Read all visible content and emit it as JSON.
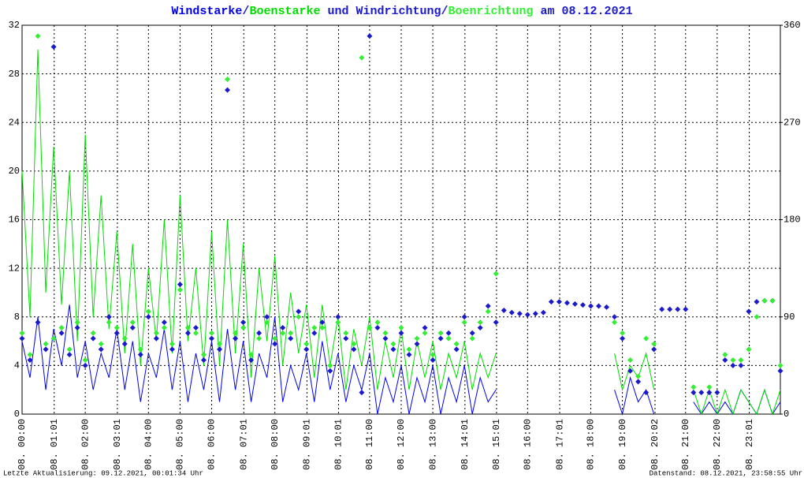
{
  "chart_data": {
    "type": "line",
    "title_joiners": [
      "/",
      " und ",
      "/",
      " am 08.12.2021"
    ],
    "footer_left": "Letzte Aktualisierung: 09.12.2021, 00:01:34 Uhr",
    "footer_right": "Datenstand: 08.12.2021, 23:58:55 Uhr",
    "xlim": [
      0,
      24
    ],
    "xticks": [
      {
        "value": 0,
        "label": "08. 00:00"
      },
      {
        "value": 1.0167,
        "label": "08. 01:01"
      },
      {
        "value": 2,
        "label": "08. 02:00"
      },
      {
        "value": 3.0167,
        "label": "08. 03:01"
      },
      {
        "value": 4,
        "label": "08. 04:00"
      },
      {
        "value": 5,
        "label": "08. 05:00"
      },
      {
        "value": 6,
        "label": "08. 06:00"
      },
      {
        "value": 7.0167,
        "label": "08. 07:01"
      },
      {
        "value": 8,
        "label": "08. 08:00"
      },
      {
        "value": 9.0167,
        "label": "08. 09:01"
      },
      {
        "value": 10.0167,
        "label": "08. 10:01"
      },
      {
        "value": 11,
        "label": "08. 11:00"
      },
      {
        "value": 12,
        "label": "08. 12:00"
      },
      {
        "value": 13,
        "label": "08. 13:00"
      },
      {
        "value": 14.0167,
        "label": "08. 14:01"
      },
      {
        "value": 15.0167,
        "label": "08. 15:01"
      },
      {
        "value": 16,
        "label": "08. 16:00"
      },
      {
        "value": 17.0167,
        "label": "08. 17:01"
      },
      {
        "value": 18,
        "label": "08. 18:00"
      },
      {
        "value": 19,
        "label": "08. 19:00"
      },
      {
        "value": 20.0333,
        "label": "08. 20:02"
      },
      {
        "value": 21,
        "label": "08. 21:00"
      },
      {
        "value": 22,
        "label": "08. 22:00"
      },
      {
        "value": 23.0167,
        "label": "08. 23:01"
      }
    ],
    "ylim": [
      0,
      32
    ],
    "yticks": [
      0,
      4,
      8,
      12,
      16,
      20,
      24,
      28,
      32
    ],
    "y2lim": [
      0,
      360
    ],
    "y2ticks": [
      0,
      90,
      180,
      270,
      360
    ],
    "grid": true,
    "x": [
      0,
      0.25,
      0.5,
      0.75,
      1,
      1.25,
      1.5,
      1.75,
      2,
      2.25,
      2.5,
      2.75,
      3,
      3.25,
      3.5,
      3.75,
      4,
      4.25,
      4.5,
      4.75,
      5,
      5.25,
      5.5,
      5.75,
      6,
      6.25,
      6.5,
      6.75,
      7,
      7.25,
      7.5,
      7.75,
      8,
      8.25,
      8.5,
      8.75,
      9,
      9.25,
      9.5,
      9.75,
      10,
      10.25,
      10.5,
      10.75,
      11,
      11.25,
      11.5,
      11.75,
      12,
      12.25,
      12.5,
      12.75,
      13,
      13.25,
      13.5,
      13.75,
      14,
      14.25,
      14.5,
      14.75,
      15,
      15.25,
      15.5,
      15.75,
      16,
      16.25,
      16.5,
      16.75,
      17,
      17.25,
      17.5,
      17.75,
      18,
      18.25,
      18.5,
      18.75,
      19,
      19.25,
      19.5,
      19.75,
      20,
      20.25,
      20.5,
      20.75,
      21,
      21.25,
      21.5,
      21.75,
      22,
      22.25,
      22.5,
      22.75,
      23,
      23.25,
      23.5,
      23.75,
      24
    ],
    "series": [
      {
        "name": "Windstarke",
        "color": "#0000ee",
        "mark": "line",
        "values": [
          6,
          3,
          8,
          2,
          7,
          4,
          9,
          3,
          6,
          2,
          5,
          3,
          7,
          2,
          6,
          1,
          5,
          3,
          7,
          2,
          6,
          1,
          5,
          2,
          6,
          1,
          7,
          2,
          6,
          1,
          5,
          3,
          8,
          1,
          4,
          2,
          5,
          1,
          6,
          2,
          5,
          1,
          4,
          2,
          5,
          0,
          3,
          1,
          4,
          0,
          3,
          1,
          4,
          0,
          3,
          1,
          4,
          0,
          3,
          1,
          2,
          null,
          null,
          null,
          null,
          null,
          null,
          null,
          null,
          null,
          null,
          null,
          null,
          null,
          null,
          2,
          0,
          3,
          1,
          2,
          0,
          null,
          null,
          null,
          null,
          1,
          0,
          1,
          0,
          1,
          0,
          2,
          1,
          0,
          2,
          0,
          1
        ]
      },
      {
        "name": "Boenstarke",
        "color": "#00dd00",
        "mark": "line",
        "values": [
          20,
          8,
          30,
          10,
          22,
          9,
          20,
          6,
          23,
          8,
          18,
          7,
          15,
          5,
          14,
          4,
          12,
          6,
          16,
          5,
          18,
          6,
          12,
          4,
          15,
          4,
          16,
          5,
          14,
          3,
          12,
          6,
          13,
          4,
          10,
          5,
          9,
          3,
          9,
          4,
          8,
          2,
          7,
          4,
          8,
          2,
          6,
          3,
          7,
          2,
          6,
          3,
          6,
          2,
          5,
          3,
          6,
          2,
          5,
          3,
          5,
          null,
          null,
          null,
          null,
          null,
          null,
          null,
          null,
          null,
          null,
          null,
          null,
          null,
          null,
          5,
          2,
          4,
          3,
          5,
          2,
          null,
          null,
          null,
          null,
          2,
          0,
          2,
          0,
          2,
          0,
          2,
          1,
          0,
          2,
          0,
          2
        ]
      },
      {
        "name": "Windrichtung",
        "color": "#1a1acc",
        "mark": "diamond",
        "axis": "y2",
        "values": [
          70,
          50,
          85,
          60,
          340,
          75,
          55,
          80,
          45,
          70,
          60,
          90,
          75,
          65,
          80,
          55,
          90,
          70,
          85,
          60,
          120,
          75,
          80,
          50,
          70,
          60,
          300,
          70,
          85,
          50,
          75,
          90,
          65,
          80,
          70,
          95,
          60,
          75,
          85,
          40,
          90,
          70,
          60,
          20,
          350,
          80,
          70,
          60,
          75,
          55,
          65,
          80,
          50,
          70,
          75,
          60,
          90,
          75,
          80,
          100,
          85,
          96,
          94,
          93,
          92,
          93,
          94,
          104,
          104,
          103,
          102,
          101,
          100,
          100,
          99,
          90,
          70,
          40,
          30,
          20,
          60,
          97,
          97,
          97,
          97,
          20,
          20,
          20,
          20,
          50,
          45,
          45,
          95,
          104,
          105,
          105,
          40
        ]
      },
      {
        "name": "Boenrichtung",
        "color": "#33ee33",
        "mark": "diamond",
        "axis": "y2",
        "values": [
          75,
          55,
          350,
          65,
          70,
          80,
          60,
          85,
          50,
          75,
          65,
          85,
          80,
          70,
          85,
          60,
          95,
          75,
          80,
          65,
          115,
          80,
          75,
          55,
          75,
          65,
          310,
          75,
          80,
          55,
          70,
          85,
          70,
          75,
          75,
          90,
          65,
          80,
          80,
          45,
          85,
          75,
          65,
          330,
          80,
          85,
          75,
          65,
          80,
          60,
          70,
          75,
          55,
          75,
          70,
          65,
          85,
          70,
          85,
          95,
          130,
          null,
          null,
          null,
          null,
          null,
          null,
          null,
          null,
          null,
          null,
          null,
          null,
          null,
          null,
          85,
          75,
          50,
          35,
          70,
          65,
          null,
          null,
          null,
          null,
          25,
          null,
          25,
          null,
          55,
          50,
          50,
          60,
          90,
          105,
          105,
          45
        ]
      }
    ]
  }
}
